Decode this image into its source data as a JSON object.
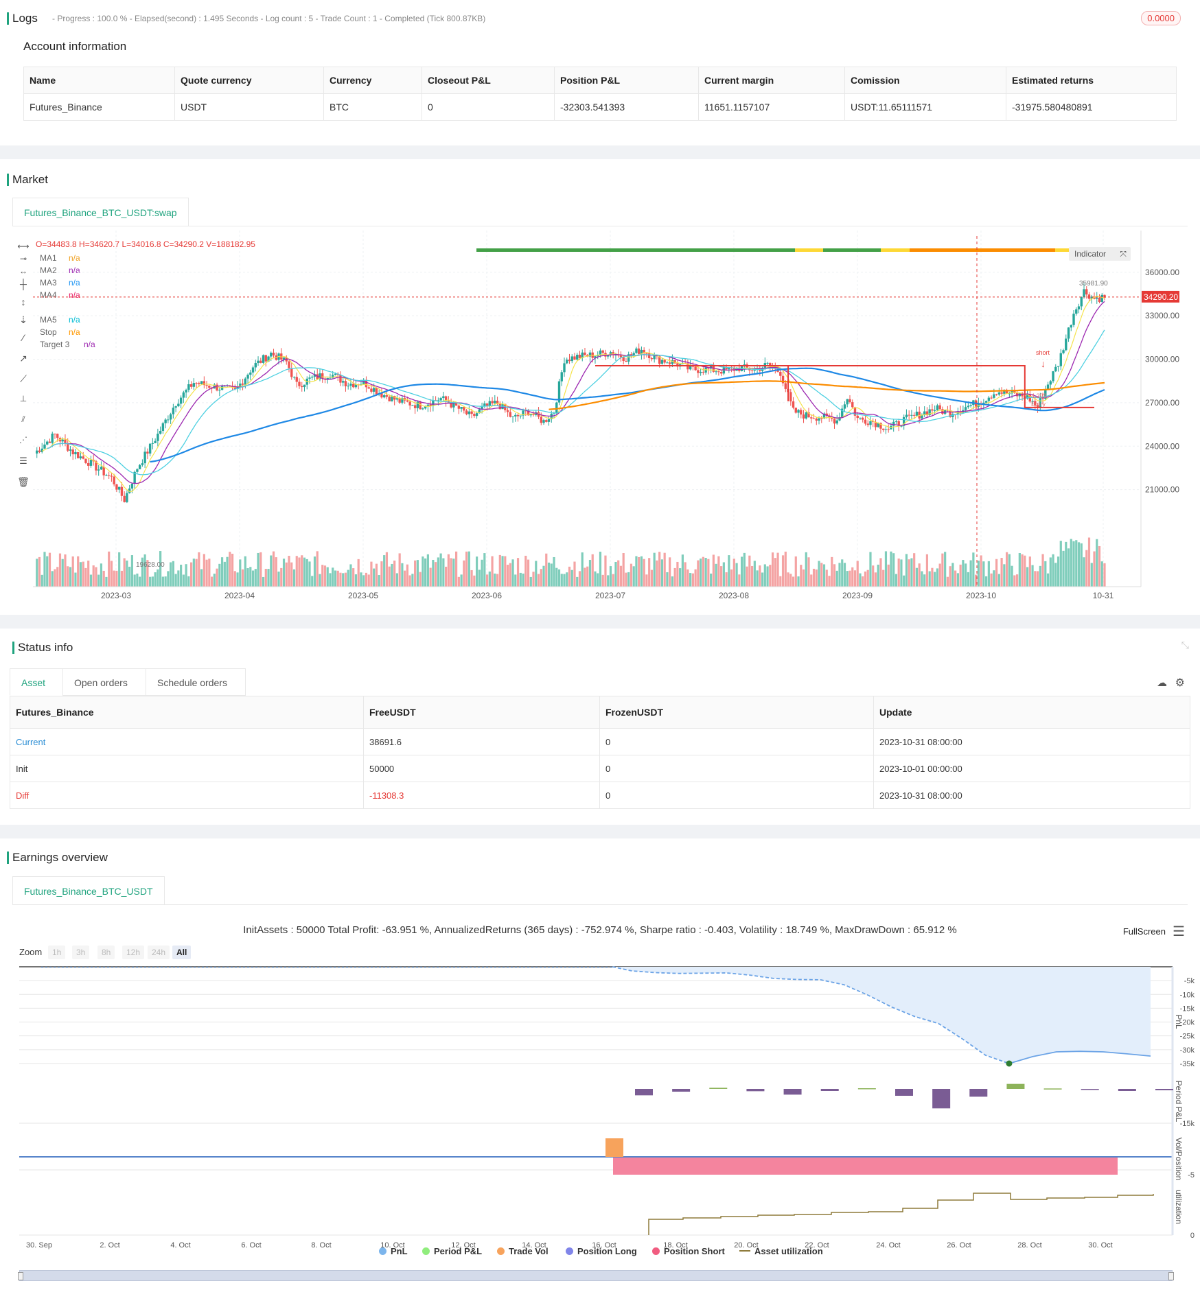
{
  "logs": {
    "title": "Logs",
    "progress": "- Progress : 100.0 % - Elapsed(second) : 1.495  Seconds - Log count : 5 - Trade Count : 1 - Completed (Tick 800.87KB)",
    "badge": "0.0000"
  },
  "account": {
    "title": "Account information",
    "headers": [
      "Name",
      "Quote currency",
      "Currency",
      "Closeout P&L",
      "Position P&L",
      "Current margin",
      "Comission",
      "Estimated returns"
    ],
    "row": [
      "Futures_Binance",
      "USDT",
      "BTC",
      "0",
      "-32303.541393",
      "11651.1157107",
      "USDT:11.65111571",
      "-31975.580480891"
    ]
  },
  "market": {
    "title": "Market",
    "tab": "Futures_Binance_BTC_USDT:swap",
    "ohlc": "O=34483.8 H=34620.7 L=34016.8 C=34290.2 V=188182.95",
    "indicators": [
      {
        "name": "MA1",
        "value": "n/a",
        "color": "#f0a020"
      },
      {
        "name": "MA2",
        "value": "n/a",
        "color": "#9c27b0"
      },
      {
        "name": "MA3",
        "value": "n/a",
        "color": "#2196f3"
      },
      {
        "name": "MA4",
        "value": "n/a",
        "color": "#e91e63"
      },
      {
        "name": "MA5",
        "value": "n/a",
        "color": "#00bcd4"
      },
      {
        "name": "Stop",
        "value": "n/a",
        "color": "#ff9800"
      },
      {
        "name": "Target 3",
        "value": "n/a",
        "color": "#9c27b0"
      }
    ],
    "indicator_button": "Indicator",
    "y_ticks": [
      "36000.00",
      "33000.00",
      "30000.00",
      "27000.00",
      "24000.00",
      "21000.00"
    ],
    "x_ticks": [
      "2023-03",
      "2023-04",
      "2023-05",
      "2023-06",
      "2023-07",
      "2023-08",
      "2023-09",
      "2023-10",
      "10-31"
    ],
    "current_price": "34290.20",
    "high_label": "35981.90",
    "low_label": "19628.00",
    "short_label": "short",
    "entry_label": "Entry",
    "entry_price": "4.293"
  },
  "status": {
    "title": "Status info",
    "tabs": [
      "Asset",
      "Open orders",
      "Schedule orders"
    ],
    "headers": [
      "Futures_Binance",
      "FreeUSDT",
      "FrozenUSDT",
      "Update"
    ],
    "rows": [
      [
        "Current",
        "38691.6",
        "0",
        "2023-10-31 08:00:00"
      ],
      [
        "Init",
        "50000",
        "0",
        "2023-10-01 00:00:00"
      ],
      [
        "Diff",
        "-11308.3",
        "0",
        "2023-10-31 08:00:00"
      ]
    ]
  },
  "earnings": {
    "title": "Earnings overview",
    "tab": "Futures_Binance_BTC_USDT",
    "summary": "InitAssets : 50000 Total Profit: -63.951 %, AnnualizedReturns (365 days) : -752.974 %, Sharpe ratio : -0.403, Volatility : 18.749 %, MaxDrawDown : 65.912 %",
    "fullscreen": "FullScreen",
    "zoom_label": "Zoom",
    "zoom_options": [
      "1h",
      "3h",
      "8h",
      "12h",
      "24h",
      "All"
    ],
    "pnl_ticks": [
      "-5k",
      "-10k",
      "-15k",
      "-20k",
      "-25k",
      "-30k",
      "-35k"
    ],
    "period_tick": "-15k",
    "vol_tick": "-5",
    "util_tick": "0",
    "panel_labels": [
      "PnL",
      "Period P&L",
      "Vol/Position",
      "utilization"
    ],
    "x_ticks": [
      "30. Sep",
      "2. Oct",
      "4. Oct",
      "6. Oct",
      "8. Oct",
      "10. Oct",
      "12. Oct",
      "14. Oct",
      "16. Oct",
      "18. Oct",
      "20. Oct",
      "22. Oct",
      "24. Oct",
      "26. Oct",
      "28. Oct",
      "30. Oct"
    ],
    "legend": [
      {
        "label": "PnL",
        "color": "#7cb5ec"
      },
      {
        "label": "Period P&L",
        "color": "#90ed7d"
      },
      {
        "label": "Trade Vol",
        "color": "#f7a35c"
      },
      {
        "label": "Position Long",
        "color": "#8085e9"
      },
      {
        "label": "Position Short",
        "color": "#f15c80"
      },
      {
        "label": "Asset utilization",
        "color": "#8d7a3a"
      }
    ]
  }
}
